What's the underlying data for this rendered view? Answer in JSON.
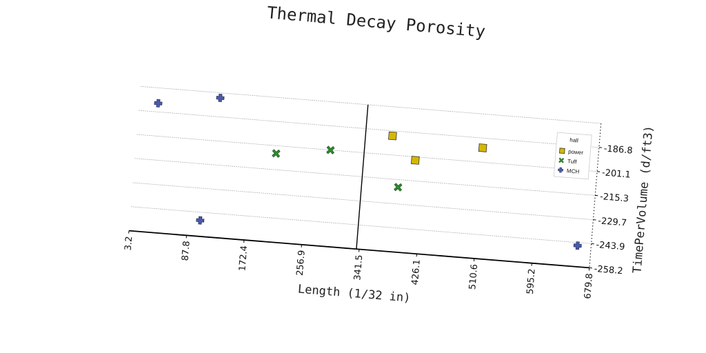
{
  "chart_data": {
    "type": "scatter",
    "title": "Thermal Decay Porosity",
    "xlabel": "Length (1/32 in)",
    "ylabel": "TimePerVolume (d/ft3)",
    "xlim": [
      3.2,
      679.8
    ],
    "ylim": [
      -258.2,
      -172.6
    ],
    "x_ticks": [
      "3.2",
      "87.8",
      "172.4",
      "256.9",
      "341.5",
      "426.1",
      "510.6",
      "595.2",
      "679.8"
    ],
    "y_ticks": [
      "-186.8",
      "-201.1",
      "-215.3",
      "-229.7",
      "-243.9",
      "-258.2"
    ],
    "grid": true,
    "legend": {
      "title": "hall",
      "placement": "right"
    },
    "series": [
      {
        "name": "power",
        "marker": "square",
        "color": "#d4b800",
        "points": [
          {
            "x": 377,
            "y": -189.8
          },
          {
            "x": 510,
            "y": -192.6
          },
          {
            "x": 413,
            "y": -203.1
          }
        ]
      },
      {
        "name": "Tuff",
        "marker": "x",
        "color": "#2e8b2e",
        "points": [
          {
            "x": 209,
            "y": -205.7
          },
          {
            "x": 288,
            "y": -201.1
          },
          {
            "x": 391,
            "y": -219.8
          }
        ]
      },
      {
        "name": "MCH",
        "marker": "plus",
        "color": "#4a5aa8",
        "points": [
          {
            "x": 31,
            "y": -181.7
          },
          {
            "x": 121,
            "y": -175.6
          },
          {
            "x": 106,
            "y": -248.7
          },
          {
            "x": 660,
            "y": -245.7
          }
        ]
      }
    ]
  }
}
